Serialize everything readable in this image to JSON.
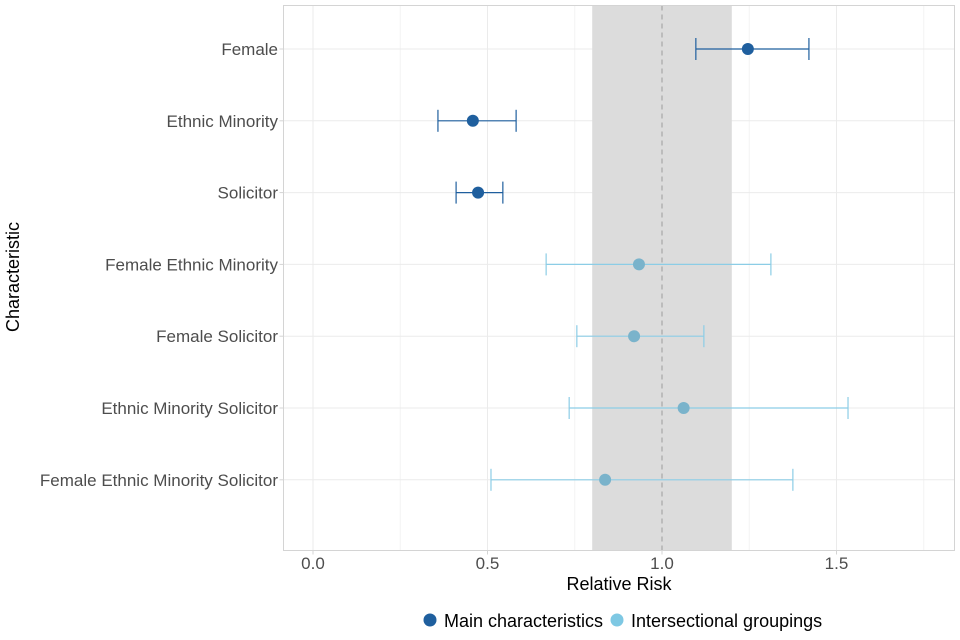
{
  "chart_data": {
    "type": "forest",
    "title": "",
    "xlabel": "Relative Risk",
    "ylabel": "Characteristic",
    "xlim": [
      -0.08,
      1.83
    ],
    "xticks": [
      0.0,
      0.5,
      1.0,
      1.5
    ],
    "xtick_labels": [
      "0.0",
      "0.5",
      "1.0",
      "1.5"
    ],
    "reference_line": 1.0,
    "shaded_band": [
      0.8,
      1.2
    ],
    "grid": true,
    "legend_position": "bottom",
    "series": [
      {
        "name": "Main characteristics",
        "color": "#1f5f9e"
      },
      {
        "name": "Intersectional groupings",
        "color": "#7ec8e3"
      }
    ],
    "categories": [
      "Female",
      "Ethnic Minority",
      "Solicitor",
      "Female Ethnic Minority",
      "Female Solicitor",
      "Ethnic Minority Solicitor",
      "Female Ethnic Minority Solicitor"
    ],
    "points": [
      {
        "label": "Female",
        "group": "Main characteristics",
        "estimate": 1.246,
        "lower": 1.097,
        "upper": 1.421
      },
      {
        "label": "Ethnic Minority",
        "group": "Main characteristics",
        "estimate": 0.458,
        "lower": 0.358,
        "upper": 0.582
      },
      {
        "label": "Solicitor",
        "group": "Main characteristics",
        "estimate": 0.473,
        "lower": 0.41,
        "upper": 0.544
      },
      {
        "label": "Female Ethnic Minority",
        "group": "Intersectional groupings",
        "estimate": 0.934,
        "lower": 0.668,
        "upper": 1.312
      },
      {
        "label": "Female Solicitor",
        "group": "Intersectional groupings",
        "estimate": 0.92,
        "lower": 0.756,
        "upper": 1.12
      },
      {
        "label": "Ethnic Minority Solicitor",
        "group": "Intersectional groupings",
        "estimate": 1.062,
        "lower": 0.734,
        "upper": 1.533
      },
      {
        "label": "Female Ethnic Minority Solicitor",
        "group": "Intersectional groupings",
        "estimate": 0.837,
        "lower": 0.51,
        "upper": 1.375
      }
    ],
    "colors": {
      "main_point": "#1f5f9e",
      "main_bar": "#1f5f9e",
      "intersectional_point": "#7ab3cb",
      "intersectional_bar": "#8ccde6",
      "band": "#dcdcdc",
      "reference": "#a6a6a6"
    }
  }
}
